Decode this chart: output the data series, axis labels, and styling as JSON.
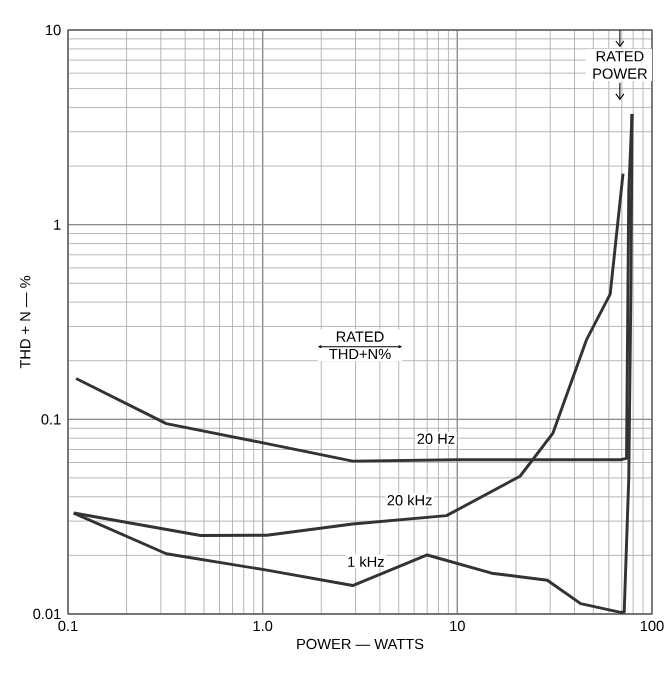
{
  "chart_data": {
    "type": "line",
    "xlabel": "POWER — WATTS",
    "ylabel": "THD + N — %",
    "log": "xy",
    "grid": true,
    "marker": "none",
    "line_style": "solid",
    "xlim": [
      0.1,
      100
    ],
    "ylim": [
      0.01,
      10
    ],
    "xticks": [
      {
        "value": 0.1,
        "label": "0.1"
      },
      {
        "value": 1,
        "label": "1.0"
      },
      10,
      100
    ],
    "yticks": [
      {
        "value": 0.01,
        "label": "0.01"
      },
      {
        "value": 0.1,
        "label": "0.1"
      },
      1,
      10
    ],
    "annotations": [
      "RATED POWER",
      "RATED THD+N%"
    ],
    "series": [
      {
        "name": "20 Hz",
        "color": "#333333",
        "x": [
          0.11,
          0.32,
          1.05,
          2.9,
          10,
          30,
          69,
          74,
          76,
          79
        ],
        "values": [
          0.162,
          0.095,
          0.075,
          0.061,
          0.062,
          0.062,
          0.062,
          0.063,
          1.5,
          3.7
        ]
      },
      {
        "name": "20 kHz",
        "color": "#333333",
        "x": [
          0.107,
          0.48,
          1.05,
          2.9,
          8.8,
          21,
          31,
          46,
          61,
          71
        ],
        "values": [
          0.033,
          0.0253,
          0.0254,
          0.029,
          0.032,
          0.051,
          0.085,
          0.255,
          0.44,
          1.83
        ]
      },
      {
        "name": "1 kHz",
        "color": "#333333",
        "x": [
          0.107,
          0.32,
          1.05,
          2.9,
          7.0,
          15,
          29,
          43,
          69,
          72,
          76,
          78,
          79
        ],
        "values": [
          0.033,
          0.0204,
          0.0168,
          0.014,
          0.0201,
          0.0162,
          0.0149,
          0.0113,
          0.0102,
          0.0102,
          0.05,
          0.5,
          3.7
        ]
      }
    ]
  }
}
